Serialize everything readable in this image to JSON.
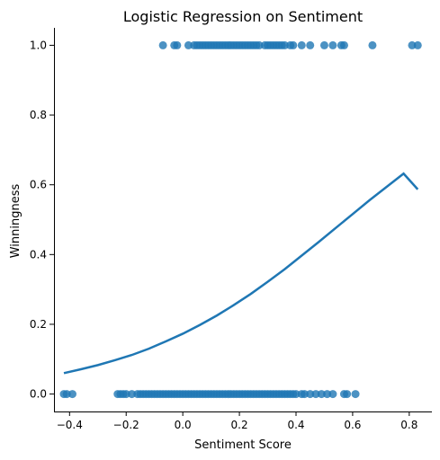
{
  "chart_data": {
    "type": "scatter",
    "title": "Logistic Regression on Sentiment",
    "xlabel": "Sentiment Score",
    "ylabel": "Winningness",
    "xlim": [
      -0.455,
      0.88
    ],
    "ylim": [
      -0.05,
      1.05
    ],
    "xticks": [
      -0.4,
      -0.2,
      0.0,
      0.2,
      0.4,
      0.6,
      0.8
    ],
    "xtick_labels": [
      "−0.4",
      "−0.2",
      "0.0",
      "0.2",
      "0.4",
      "0.6",
      "0.8"
    ],
    "yticks": [
      0.0,
      0.2,
      0.4,
      0.6,
      0.8,
      1.0
    ],
    "ytick_labels": [
      "0.0",
      "0.2",
      "0.4",
      "0.6",
      "0.8",
      "1.0"
    ],
    "grid": false,
    "colors": {
      "points": "#1f77b4",
      "line": "#1f77b4",
      "axes": "#000000"
    },
    "series": [
      {
        "type": "scatter",
        "points": [
          [
            -0.42,
            0
          ],
          [
            -0.41,
            0
          ],
          [
            -0.39,
            0
          ],
          [
            -0.23,
            0
          ],
          [
            -0.22,
            0
          ],
          [
            -0.21,
            0
          ],
          [
            -0.2,
            0
          ],
          [
            -0.18,
            0
          ],
          [
            -0.16,
            0
          ],
          [
            -0.15,
            0
          ],
          [
            -0.14,
            0
          ],
          [
            -0.13,
            0
          ],
          [
            -0.12,
            0
          ],
          [
            -0.11,
            0
          ],
          [
            -0.1,
            0
          ],
          [
            -0.09,
            0
          ],
          [
            -0.08,
            0
          ],
          [
            -0.07,
            0
          ],
          [
            -0.06,
            0
          ],
          [
            -0.05,
            0
          ],
          [
            -0.04,
            0
          ],
          [
            -0.03,
            0
          ],
          [
            -0.02,
            0
          ],
          [
            -0.01,
            0
          ],
          [
            0.0,
            0
          ],
          [
            0.01,
            0
          ],
          [
            0.02,
            0
          ],
          [
            0.03,
            0
          ],
          [
            0.04,
            0
          ],
          [
            0.05,
            0
          ],
          [
            0.06,
            0
          ],
          [
            0.07,
            0
          ],
          [
            0.08,
            0
          ],
          [
            0.09,
            0
          ],
          [
            0.1,
            0
          ],
          [
            0.11,
            0
          ],
          [
            0.12,
            0
          ],
          [
            0.13,
            0
          ],
          [
            0.14,
            0
          ],
          [
            0.15,
            0
          ],
          [
            0.16,
            0
          ],
          [
            0.17,
            0
          ],
          [
            0.18,
            0
          ],
          [
            0.19,
            0
          ],
          [
            0.2,
            0
          ],
          [
            0.21,
            0
          ],
          [
            0.22,
            0
          ],
          [
            0.23,
            0
          ],
          [
            0.24,
            0
          ],
          [
            0.25,
            0
          ],
          [
            0.26,
            0
          ],
          [
            0.27,
            0
          ],
          [
            0.28,
            0
          ],
          [
            0.29,
            0
          ],
          [
            0.3,
            0
          ],
          [
            0.31,
            0
          ],
          [
            0.32,
            0
          ],
          [
            0.33,
            0
          ],
          [
            0.34,
            0
          ],
          [
            0.35,
            0
          ],
          [
            0.36,
            0
          ],
          [
            0.37,
            0
          ],
          [
            0.38,
            0
          ],
          [
            0.39,
            0
          ],
          [
            0.4,
            0
          ],
          [
            0.42,
            0
          ],
          [
            0.43,
            0
          ],
          [
            0.45,
            0
          ],
          [
            0.47,
            0
          ],
          [
            0.49,
            0
          ],
          [
            0.51,
            0
          ],
          [
            0.53,
            0
          ],
          [
            0.57,
            0
          ],
          [
            0.58,
            0
          ],
          [
            0.61,
            0
          ],
          [
            -0.07,
            1
          ],
          [
            -0.03,
            1
          ],
          [
            -0.02,
            1
          ],
          [
            0.02,
            1
          ],
          [
            0.04,
            1
          ],
          [
            0.05,
            1
          ],
          [
            0.06,
            1
          ],
          [
            0.07,
            1
          ],
          [
            0.08,
            1
          ],
          [
            0.09,
            1
          ],
          [
            0.1,
            1
          ],
          [
            0.11,
            1
          ],
          [
            0.12,
            1
          ],
          [
            0.13,
            1
          ],
          [
            0.14,
            1
          ],
          [
            0.15,
            1
          ],
          [
            0.16,
            1
          ],
          [
            0.17,
            1
          ],
          [
            0.18,
            1
          ],
          [
            0.19,
            1
          ],
          [
            0.2,
            1
          ],
          [
            0.21,
            1
          ],
          [
            0.22,
            1
          ],
          [
            0.23,
            1
          ],
          [
            0.24,
            1
          ],
          [
            0.25,
            1
          ],
          [
            0.26,
            1
          ],
          [
            0.27,
            1
          ],
          [
            0.29,
            1
          ],
          [
            0.3,
            1
          ],
          [
            0.31,
            1
          ],
          [
            0.32,
            1
          ],
          [
            0.33,
            1
          ],
          [
            0.34,
            1
          ],
          [
            0.35,
            1
          ],
          [
            0.36,
            1
          ],
          [
            0.38,
            1
          ],
          [
            0.39,
            1
          ],
          [
            0.42,
            1
          ],
          [
            0.45,
            1
          ],
          [
            0.5,
            1
          ],
          [
            0.53,
            1
          ],
          [
            0.56,
            1
          ],
          [
            0.57,
            1
          ],
          [
            0.67,
            1
          ],
          [
            0.81,
            1
          ],
          [
            0.83,
            1
          ]
        ]
      },
      {
        "type": "line",
        "x": [
          -0.42,
          -0.36,
          -0.3,
          -0.24,
          -0.18,
          -0.12,
          -0.06,
          0.0,
          0.06,
          0.12,
          0.18,
          0.24,
          0.3,
          0.36,
          0.42,
          0.48,
          0.54,
          0.6,
          0.66,
          0.72,
          0.78,
          0.83
        ],
        "y": [
          0.06,
          0.071,
          0.083,
          0.097,
          0.112,
          0.13,
          0.151,
          0.173,
          0.198,
          0.225,
          0.255,
          0.287,
          0.322,
          0.358,
          0.397,
          0.436,
          0.476,
          0.516,
          0.556,
          0.594,
          0.632,
          0.587
        ]
      }
    ]
  }
}
